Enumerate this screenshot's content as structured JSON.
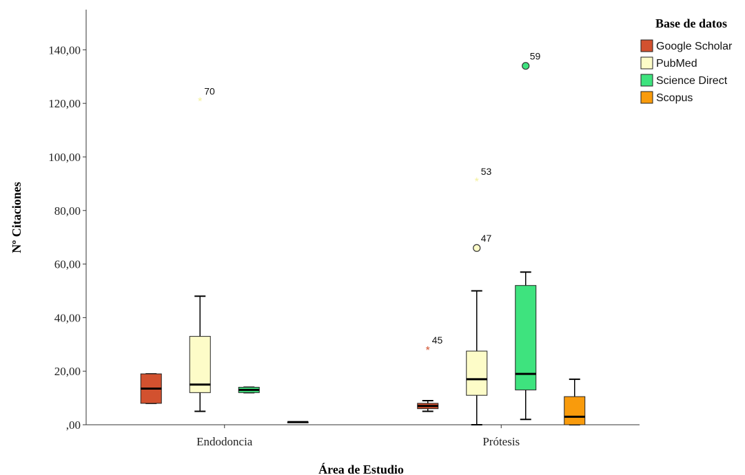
{
  "chart_data": {
    "type": "boxplot",
    "xlabel": "Área de Estudio",
    "ylabel": "Nº Citaciones",
    "ylim": [
      0,
      155
    ],
    "yticks": [
      0,
      20,
      40,
      60,
      80,
      100,
      120,
      140
    ],
    "ytick_labels": [
      ",00",
      "20,00",
      "40,00",
      "60,00",
      "80,00",
      "100,00",
      "120,00",
      "140,00"
    ],
    "categories": [
      "Endodoncia",
      "Prótesis"
    ],
    "legend": {
      "title": "Base de datos",
      "position": "top-right",
      "items": [
        {
          "name": "Google Scholar",
          "color": "#d2512f"
        },
        {
          "name": "PubMed",
          "color": "#fdfcc8"
        },
        {
          "name": "Science Direct",
          "color": "#3ee37e"
        },
        {
          "name": "Scopus",
          "color": "#f99b0c"
        }
      ]
    },
    "series": [
      {
        "name": "Google Scholar",
        "color": "#d2512f",
        "boxes": [
          {
            "category": "Endodoncia",
            "min": 8,
            "q1": 8,
            "median": 13.5,
            "q3": 19,
            "max": 19,
            "outliers": []
          },
          {
            "category": "Prótesis",
            "min": 5,
            "q1": 6,
            "median": 7,
            "q3": 8,
            "max": 9,
            "outliers": [
              {
                "value": 28,
                "label": "45",
                "marker": "star"
              }
            ]
          }
        ]
      },
      {
        "name": "PubMed",
        "color": "#fdfcc8",
        "boxes": [
          {
            "category": "Endodoncia",
            "min": 5,
            "q1": 12,
            "median": 15,
            "q3": 33,
            "max": 48,
            "outliers": [
              {
                "value": 121,
                "label": "70",
                "marker": "star"
              }
            ]
          },
          {
            "category": "Prótesis",
            "min": 0,
            "q1": 11,
            "median": 17,
            "q3": 27.5,
            "max": 50,
            "outliers": [
              {
                "value": 66,
                "label": "47",
                "marker": "circle"
              },
              {
                "value": 91,
                "label": "53",
                "marker": "star"
              }
            ]
          }
        ]
      },
      {
        "name": "Science Direct",
        "color": "#3ee37e",
        "boxes": [
          {
            "category": "Endodoncia",
            "min": 12,
            "q1": 12,
            "median": 13,
            "q3": 14,
            "max": 14,
            "outliers": []
          },
          {
            "category": "Prótesis",
            "min": 2,
            "q1": 13,
            "median": 19,
            "q3": 52,
            "max": 57,
            "outliers": [
              {
                "value": 134,
                "label": "59",
                "marker": "circle"
              }
            ]
          }
        ]
      },
      {
        "name": "Scopus",
        "color": "#f99b0c",
        "boxes": [
          {
            "category": "Endodoncia",
            "min": 1,
            "q1": 1,
            "median": 1,
            "q3": 1,
            "max": 1,
            "outliers": []
          },
          {
            "category": "Prótesis",
            "min": 0,
            "q1": 0,
            "median": 3,
            "q3": 10.5,
            "max": 17,
            "outliers": []
          }
        ]
      }
    ]
  }
}
